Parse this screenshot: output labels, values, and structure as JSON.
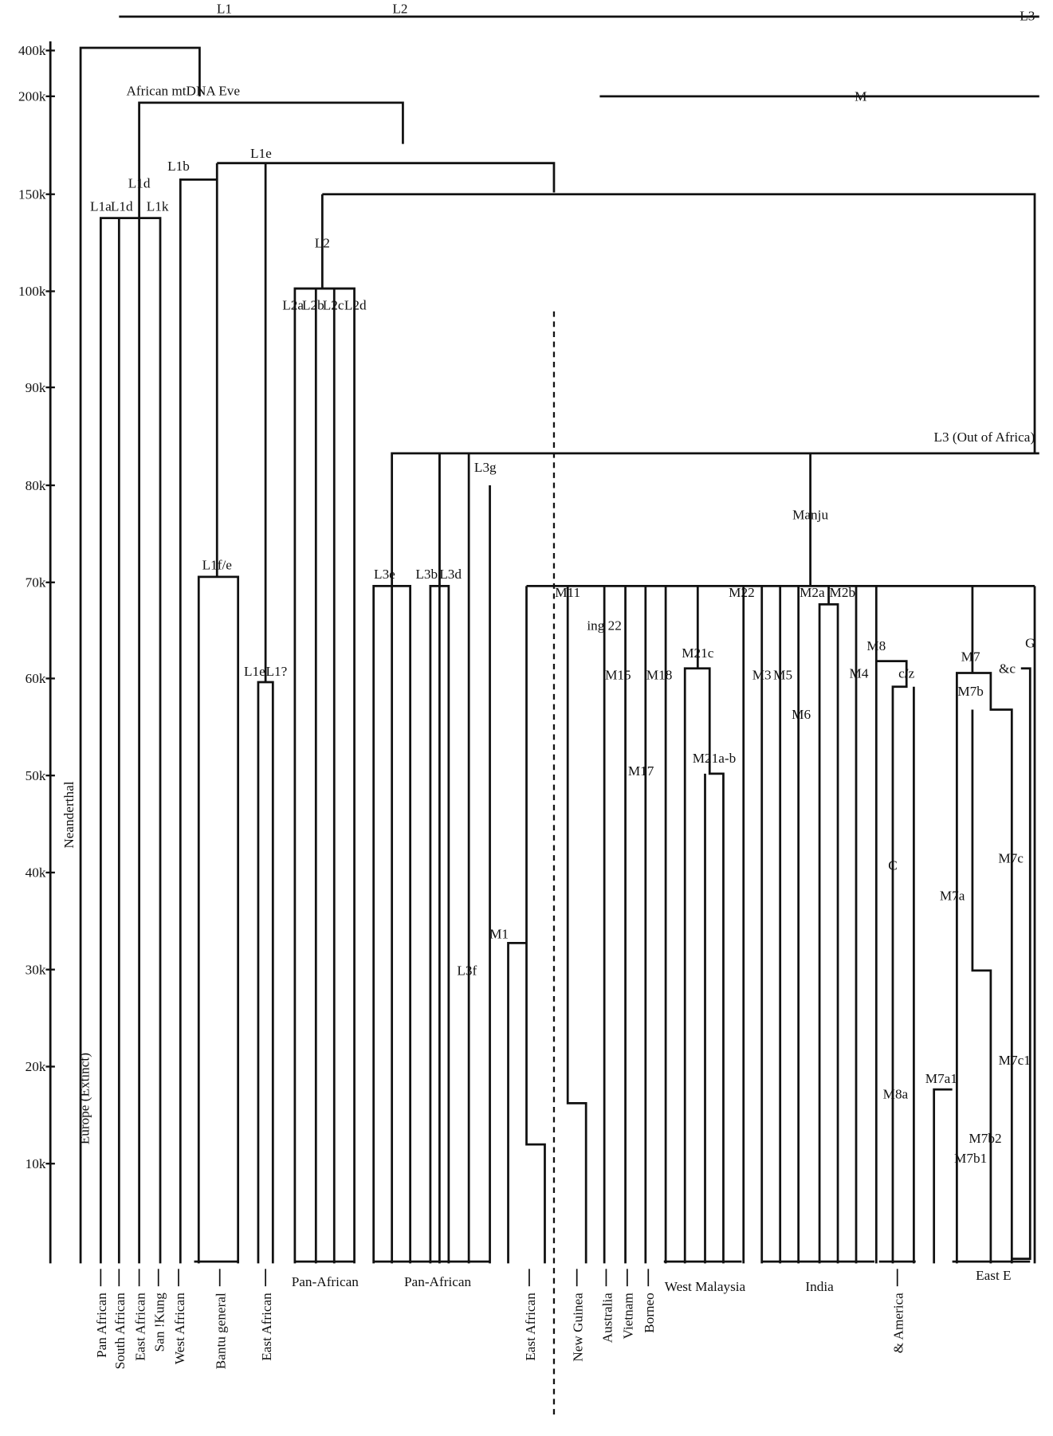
{
  "top_labels": [
    "L1",
    "L2",
    "L3",
    "M",
    "African mtDNA Eve"
  ],
  "axis_ticks": [
    "400k",
    "200k",
    "150k",
    "100k",
    "90k",
    "80k",
    "70k",
    "60k",
    "50k",
    "40k",
    "30k",
    "20k",
    "10k"
  ],
  "side_labels": [
    "Neanderthal",
    "Europe (Extinct)"
  ],
  "nodes": [
    "L1a",
    "L1d",
    "L1k",
    "L1d",
    "L1b",
    "L1e",
    "L2",
    "L2a",
    "L2b",
    "L2c",
    "L2d",
    "L1f/e",
    "L1e",
    "L1?",
    "L3e",
    "L3b",
    "L3d",
    "L3g",
    "L3f",
    "L3 (Out of Africa)",
    "Manju",
    "M1",
    "M11",
    "M15",
    "M18",
    "M17",
    "M21c",
    "M21a-b",
    "M22",
    "M3",
    "M5",
    "M6",
    "M2a",
    "M2b",
    "M4",
    "M8",
    "c/z",
    "C",
    "M8a",
    "M7",
    "M7b",
    "&c",
    "M7a",
    "M7c",
    "M7a1",
    "M7c1",
    "M7b2",
    "M7b1",
    "G",
    "ing 22"
  ],
  "leaves": [
    "Pan African",
    "South African",
    "East African",
    "San !Kung",
    "West African",
    "Bantu general",
    "East African",
    "East African",
    "New Guinea",
    "Australia",
    "Vietnam",
    "Borneo",
    "& America"
  ],
  "groups": [
    "Pan-African",
    "Pan-African",
    "West Malaysia",
    "India",
    "East E"
  ]
}
